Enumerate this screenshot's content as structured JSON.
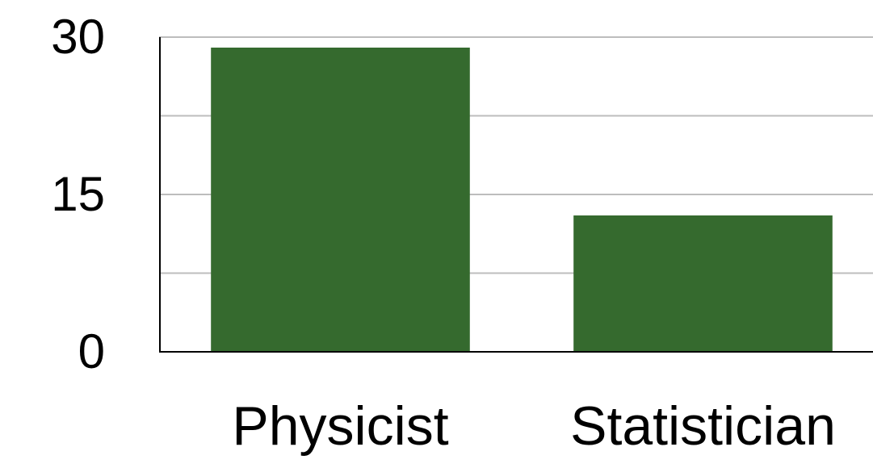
{
  "chart_data": {
    "type": "bar",
    "categories": [
      "Physicist",
      "Statistician"
    ],
    "values": [
      29,
      13
    ],
    "color": "#356a2e",
    "ylim": [
      0,
      30
    ],
    "yticks": [
      0,
      15,
      30
    ],
    "minor_yticks": [
      7.5,
      22.5
    ],
    "grid": true
  }
}
